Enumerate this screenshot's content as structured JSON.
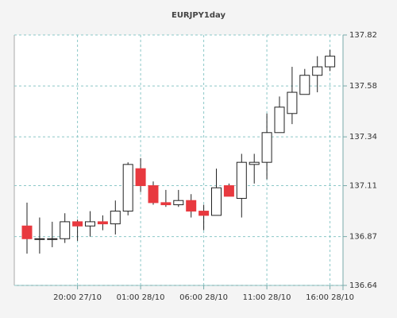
{
  "chart_data": {
    "type": "candlestick",
    "title": "EURJPY1day",
    "categories": [
      null,
      null,
      null,
      null,
      "20:00 27/10",
      null,
      null,
      null,
      null,
      "01:00 28/10",
      null,
      null,
      null,
      null,
      "06:00 28/10",
      null,
      null,
      null,
      null,
      "11:00 28/10",
      null,
      null,
      null,
      null,
      "16:00 28/10"
    ],
    "open": [
      136.92,
      136.86,
      136.86,
      136.86,
      136.94,
      136.92,
      136.94,
      136.93,
      136.99,
      137.19,
      137.11,
      137.03,
      137.02,
      137.04,
      136.99,
      136.97,
      137.11,
      137.05,
      137.21,
      137.22,
      137.36,
      137.45,
      137.54,
      137.63,
      137.67
    ],
    "high": [
      137.03,
      136.96,
      136.94,
      136.98,
      136.95,
      136.99,
      136.97,
      137.04,
      137.22,
      137.24,
      137.13,
      137.09,
      137.09,
      137.07,
      137.02,
      137.19,
      137.12,
      137.26,
      137.26,
      137.45,
      137.53,
      137.67,
      137.66,
      137.72,
      137.75
    ],
    "low": [
      136.79,
      136.79,
      136.82,
      136.84,
      136.85,
      136.87,
      136.9,
      136.88,
      136.97,
      137.08,
      137.02,
      137.01,
      137.01,
      136.96,
      136.9,
      136.97,
      137.06,
      136.96,
      137.12,
      137.14,
      137.36,
      137.4,
      137.54,
      137.55,
      137.65
    ],
    "close": [
      136.86,
      136.86,
      136.86,
      136.94,
      136.92,
      136.94,
      136.93,
      136.99,
      137.21,
      137.11,
      137.03,
      137.02,
      137.04,
      136.99,
      136.97,
      137.1,
      137.06,
      137.22,
      137.22,
      137.36,
      137.48,
      137.55,
      137.63,
      137.67,
      137.72
    ],
    "up_color": "#ffffff",
    "down_color": "#e8393f",
    "ylim": [
      136.64,
      137.82
    ],
    "yticks": [
      136.64,
      136.87,
      137.11,
      137.34,
      137.58,
      137.82
    ],
    "grid": true
  }
}
